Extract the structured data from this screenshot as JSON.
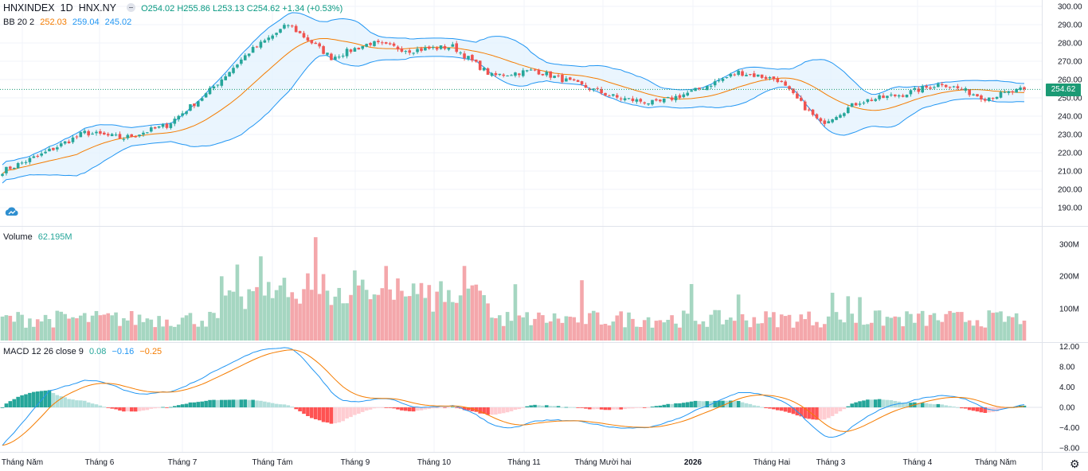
{
  "header": {
    "symbol": "HNXINDEX",
    "interval": "1D",
    "exchange": "HNX.NY",
    "ohlc": "O254.02 H255.86 L253.13 C254.62 +1.34 (+0.53%)"
  },
  "bb_legend": {
    "name": "BB 20 2",
    "basis": "252.03",
    "upper": "259.04",
    "lower": "245.02"
  },
  "volume_legend": {
    "name": "Volume",
    "value": "62.195M"
  },
  "macd_legend": {
    "name": "MACD 12 26 close 9",
    "hist": "0.08",
    "macd": "−0.16",
    "signal": "−0.25"
  },
  "price_tag": "254.62",
  "colors": {
    "up": "#26a69a",
    "down": "#ef5350",
    "bb": "#2196f3",
    "bb_fill": "#e3f2fd",
    "basis": "#f57c00",
    "signal": "#f57c00",
    "macd": "#2196f3",
    "price_tag": "#1b9a74"
  },
  "icons": {
    "settings": "gear-icon",
    "logo": "cloud-logo-icon"
  },
  "chart_data": [
    {
      "type": "candlestick",
      "title": "HNXINDEX 1D HNX.NY",
      "price_axis_ticks": [
        "300.00",
        "290.00",
        "280.00",
        "270.00",
        "260.00",
        "250.00",
        "240.00",
        "230.00",
        "220.00",
        "210.00",
        "200.00",
        "190.00"
      ],
      "ylim": [
        184,
        301
      ],
      "time_axis_labels": [
        "Tháng Năm",
        "Tháng 6",
        "Tháng 7",
        "Tháng Tám",
        "Tháng 9",
        "Tháng 10",
        "Tháng 11",
        "Tháng Mười hai",
        "2026",
        "Tháng Hai",
        "Tháng 3",
        "Tháng 4",
        "Tháng Năm"
      ],
      "close_trend": [
        {
          "label": "Tháng Năm",
          "close": 210
        },
        {
          "label": "Tháng 6",
          "close": 219
        },
        {
          "label": "Tháng 6",
          "close": 231
        },
        {
          "label": "Tháng 7",
          "close": 228
        },
        {
          "label": "Tháng 7",
          "close": 235
        },
        {
          "label": "Tháng Tám",
          "close": 252
        },
        {
          "label": "Tháng Tám",
          "close": 275
        },
        {
          "label": "Tháng Tám",
          "close": 290
        },
        {
          "label": "Tháng 9",
          "close": 272
        },
        {
          "label": "Tháng 9",
          "close": 280
        },
        {
          "label": "Tháng 10",
          "close": 276
        },
        {
          "label": "Tháng 10",
          "close": 278
        },
        {
          "label": "Tháng 11",
          "close": 262
        },
        {
          "label": "Tháng 11",
          "close": 265
        },
        {
          "label": "Tháng Mười hai",
          "close": 258
        },
        {
          "label": "Tháng Mười hai",
          "close": 250
        },
        {
          "label": "2026",
          "close": 247
        },
        {
          "label": "2026",
          "close": 254
        },
        {
          "label": "Tháng Hai",
          "close": 264
        },
        {
          "label": "Tháng Hai",
          "close": 260
        },
        {
          "label": "Tháng 3",
          "close": 236
        },
        {
          "label": "Tháng 3",
          "close": 248
        },
        {
          "label": "Tháng 4",
          "close": 252
        },
        {
          "label": "Tháng 4",
          "close": 258
        },
        {
          "label": "Tháng Năm",
          "close": 250
        },
        {
          "label": "Tháng Năm",
          "close": 254.62
        }
      ]
    },
    {
      "type": "bar",
      "title": "Volume",
      "axis_ticks": [
        "300M",
        "200M",
        "100M"
      ],
      "ylim": [
        0,
        330000000
      ],
      "last_value": "62.195M"
    },
    {
      "type": "line",
      "title": "MACD 12 26 close 9",
      "axis_ticks": [
        "12.00",
        "8.00",
        "4.00",
        "0.00",
        "−4.00",
        "−8.00"
      ],
      "ylim": [
        -9.5,
        12.5
      ],
      "values": {
        "histogram": 0.08,
        "macd": -0.16,
        "signal": -0.25
      }
    }
  ]
}
